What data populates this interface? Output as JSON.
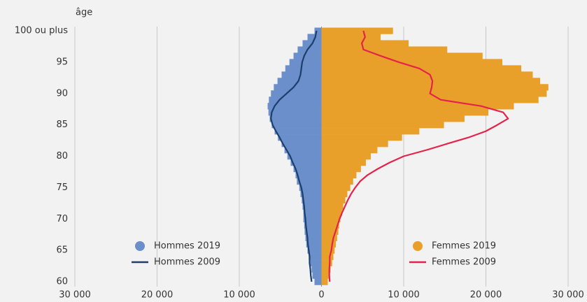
{
  "chart_data": {
    "type": "pyramid",
    "y_axis_label": "âge",
    "categories": [
      "60",
      null,
      null,
      null,
      null,
      "65",
      null,
      null,
      null,
      null,
      "70",
      null,
      null,
      null,
      null,
      "75",
      null,
      null,
      null,
      null,
      "80",
      null,
      null,
      null,
      null,
      "85",
      null,
      null,
      null,
      null,
      "90",
      null,
      null,
      null,
      null,
      "95",
      null,
      null,
      null,
      null,
      "100 ou plus"
    ],
    "xlim": [
      -30000,
      30000
    ],
    "xticks": [
      {
        "value": -30000,
        "label": "30 000"
      },
      {
        "value": -20000,
        "label": "20 000"
      },
      {
        "value": -10000,
        "label": "10 000"
      },
      0,
      {
        "value": 10000,
        "label": "10 000"
      },
      {
        "value": 20000,
        "label": "20 000"
      },
      {
        "value": 30000,
        "label": "30 000"
      }
    ],
    "grid": true,
    "series": [
      {
        "name": "Hommes 2019",
        "kind": "bar",
        "color": "#6a8fcb",
        "values": [
          -850,
          -1100,
          -1200,
          -1350,
          -1550,
          -1700,
          -1850,
          -1950,
          -2050,
          -2100,
          -2200,
          -2200,
          -2300,
          -2400,
          -2550,
          -2700,
          -3000,
          -3150,
          -3400,
          -3750,
          -4150,
          -4500,
          -4850,
          -5300,
          -5700,
          -6050,
          -6300,
          -6450,
          -6550,
          -6400,
          -6150,
          -5800,
          -5350,
          -4850,
          -4400,
          -3900,
          -3400,
          -2900,
          -2300,
          -1700,
          -850
        ]
      },
      {
        "name": "Hommes 2009",
        "kind": "line",
        "color": "#1c3f6e",
        "values": [
          -1200,
          -1300,
          -1350,
          -1450,
          -1450,
          -1550,
          -1650,
          -1700,
          -1800,
          -1900,
          -1950,
          -2050,
          -2100,
          -2200,
          -2300,
          -2450,
          -2700,
          -2900,
          -3150,
          -3500,
          -3800,
          -4250,
          -4700,
          -5100,
          -5550,
          -5950,
          -6150,
          -6050,
          -5700,
          -5100,
          -4250,
          -3400,
          -2800,
          -2550,
          -2450,
          -2350,
          -2100,
          -1700,
          -1100,
          -750,
          -600
        ]
      },
      {
        "name": "Femmes 2019",
        "kind": "bar",
        "color": "#e9a02a",
        "values": [
          770,
          940,
          1100,
          1300,
          1450,
          1600,
          1750,
          1900,
          2050,
          2150,
          2300,
          2500,
          2650,
          2900,
          3150,
          3500,
          3850,
          4250,
          4800,
          5400,
          6000,
          6800,
          8100,
          9800,
          11900,
          14900,
          17400,
          20300,
          23400,
          26400,
          27400,
          27600,
          26600,
          25700,
          24300,
          22000,
          19600,
          15300,
          10600,
          7200,
          8700
        ]
      },
      {
        "name": "Femmes 2009",
        "kind": "line",
        "color": "#e5234a",
        "values": [
          1000,
          950,
          950,
          1000,
          1000,
          1200,
          1300,
          1450,
          1700,
          1950,
          2200,
          2500,
          2850,
          3200,
          3600,
          4100,
          4700,
          5600,
          6850,
          8300,
          10000,
          12800,
          15300,
          17900,
          20000,
          21400,
          22700,
          22100,
          19400,
          14500,
          13200,
          13400,
          13500,
          13200,
          11900,
          9400,
          7200,
          5100,
          4900,
          5300,
          5100
        ]
      }
    ]
  }
}
